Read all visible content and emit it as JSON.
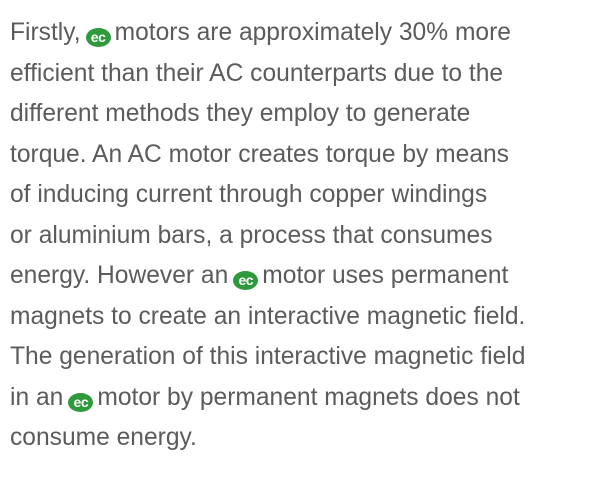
{
  "paragraph": {
    "logo": "ec",
    "lines": [
      {
        "before": "Firstly,",
        "after": "motors are approximately 30% more"
      },
      "efficient than their AC counterparts due to the",
      "different methods they employ to generate",
      "torque. An AC motor creates torque by means",
      "of inducing current through copper windings",
      "or aluminium bars, a process that consumes",
      {
        "before": "energy. However an",
        "after": "motor uses permanent"
      },
      "magnets to create an interactive magnetic field.",
      "The generation of this interactive magnetic field",
      {
        "before": "in an",
        "after": "motor by permanent magnets does not"
      },
      "consume energy."
    ]
  }
}
